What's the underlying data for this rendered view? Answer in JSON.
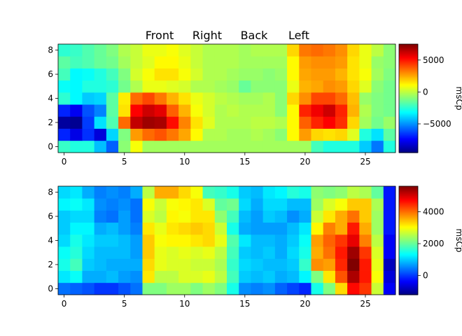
{
  "figure": {
    "top_labels": [
      "Front",
      "Right",
      "Back",
      "Left"
    ]
  },
  "chart_data": [
    {
      "type": "heatmap",
      "title": "",
      "xlabel": "",
      "ylabel": "",
      "x_ticks": [
        0,
        5,
        10,
        15,
        20,
        25
      ],
      "y_ticks": [
        0,
        2,
        4,
        6,
        8
      ],
      "x_range": [
        -0.5,
        27.5
      ],
      "y_range": [
        -0.5,
        8.5
      ],
      "colorbar": {
        "label": "msCp",
        "min": -9500,
        "max": 7500,
        "ticks": [
          5000,
          0,
          -5000
        ]
      },
      "colormap": "jet",
      "rows": [
        [
          -2200,
          -2600,
          -2600,
          -4200,
          -5800,
          -800,
          1000,
          -400,
          -400,
          -400,
          -400,
          -400,
          -400,
          -400,
          -400,
          -400,
          -400,
          -400,
          -400,
          -400,
          -400,
          -2000,
          -2600,
          -2600,
          -2600,
          -4000,
          -5400,
          -2600
        ],
        [
          -6800,
          -7800,
          -6600,
          -8000,
          -3800,
          -1000,
          2800,
          3600,
          4000,
          3400,
          2600,
          1200,
          -200,
          -200,
          -400,
          -400,
          -200,
          -400,
          -800,
          1200,
          2800,
          1800,
          1600,
          1800,
          600,
          -2600,
          -3600,
          -1600
        ],
        [
          -9000,
          -9200,
          -6400,
          -3600,
          -1800,
          3600,
          6400,
          7000,
          6800,
          5200,
          3200,
          1600,
          600,
          -200,
          -200,
          -200,
          0,
          0,
          -200,
          1200,
          3800,
          4800,
          5400,
          4600,
          1800,
          -400,
          -1200,
          -600
        ],
        [
          -6800,
          -7600,
          -6000,
          -5200,
          -1600,
          1600,
          5400,
          6200,
          5800,
          3800,
          2400,
          1000,
          400,
          -200,
          0,
          -200,
          -200,
          -200,
          -800,
          1200,
          4800,
          5600,
          6200,
          4800,
          2400,
          -200,
          -1000,
          -1200
        ],
        [
          -2400,
          -3200,
          -4000,
          -3800,
          -1600,
          1400,
          3600,
          4200,
          3400,
          2400,
          1600,
          800,
          400,
          0,
          -200,
          -400,
          -400,
          -200,
          -800,
          1800,
          3000,
          4200,
          4200,
          3600,
          2200,
          -600,
          -1000,
          -1200
        ],
        [
          -3000,
          -3200,
          -2600,
          -2600,
          -2400,
          -1200,
          -200,
          800,
          800,
          600,
          400,
          -200,
          -200,
          -400,
          -600,
          -1400,
          -800,
          -800,
          -800,
          800,
          2400,
          2600,
          3000,
          2800,
          1800,
          600,
          -800,
          -1200
        ],
        [
          -2000,
          -3200,
          -3000,
          -2600,
          -2000,
          -1000,
          400,
          1000,
          1600,
          1600,
          1000,
          400,
          -200,
          -200,
          -400,
          -600,
          -600,
          -800,
          -600,
          1200,
          2600,
          2800,
          2800,
          2400,
          1600,
          1000,
          -400,
          -1000
        ],
        [
          -1600,
          -2000,
          -1800,
          -1400,
          -1200,
          -400,
          200,
          600,
          1200,
          1200,
          800,
          200,
          -200,
          -200,
          -200,
          -400,
          -400,
          -400,
          -400,
          1200,
          2800,
          3000,
          3000,
          2800,
          1600,
          800,
          -600,
          -800
        ],
        [
          -2400,
          -2200,
          -1800,
          -1400,
          -1000,
          -200,
          200,
          800,
          800,
          1000,
          600,
          200,
          -200,
          -200,
          -200,
          -400,
          -200,
          -200,
          -200,
          1800,
          3400,
          3600,
          3400,
          3000,
          1800,
          800,
          0,
          -800
        ]
      ]
    },
    {
      "type": "heatmap",
      "title": "",
      "xlabel": "",
      "ylabel": "",
      "x_ticks": [
        0,
        5,
        10,
        15,
        20,
        25
      ],
      "y_ticks": [
        0,
        2,
        4,
        6,
        8
      ],
      "x_range": [
        -0.5,
        27.5
      ],
      "y_range": [
        -0.5,
        8.5
      ],
      "colorbar": {
        "label": "msCp",
        "min": -1200,
        "max": 5600,
        "ticks": [
          4000,
          2000,
          0
        ]
      },
      "colormap": "jet",
      "rows": [
        [
          400,
          300,
          200,
          0,
          0,
          200,
          400,
          2200,
          2200,
          2400,
          2400,
          2200,
          2400,
          2200,
          1500,
          600,
          500,
          600,
          300,
          100,
          -100,
          1500,
          2200,
          3300,
          4700,
          4400,
          2700,
          -400
        ],
        [
          1200,
          1400,
          800,
          800,
          900,
          700,
          600,
          3200,
          2600,
          2600,
          2800,
          2800,
          2900,
          2600,
          1800,
          1000,
          900,
          1000,
          800,
          900,
          1300,
          2200,
          3200,
          4200,
          5300,
          4600,
          3000,
          -600
        ],
        [
          1500,
          1800,
          1000,
          900,
          800,
          800,
          800,
          3300,
          2900,
          2800,
          2800,
          2700,
          2700,
          2500,
          1700,
          1100,
          1000,
          900,
          900,
          1000,
          1700,
          3800,
          3700,
          4500,
          5600,
          4600,
          2900,
          -800
        ],
        [
          1400,
          1600,
          1100,
          900,
          900,
          900,
          700,
          3400,
          2900,
          2800,
          2900,
          2800,
          2900,
          2600,
          1800,
          1000,
          900,
          1000,
          800,
          1100,
          1500,
          3600,
          4000,
          4600,
          5400,
          4400,
          2800,
          -400
        ],
        [
          1100,
          1500,
          1200,
          1000,
          1000,
          900,
          700,
          3400,
          3000,
          3100,
          3100,
          3200,
          3300,
          2900,
          1900,
          1200,
          900,
          900,
          800,
          1000,
          1400,
          3700,
          4100,
          4400,
          4900,
          3900,
          2600,
          -400
        ],
        [
          1000,
          1300,
          1300,
          800,
          900,
          700,
          500,
          3200,
          2900,
          3200,
          3300,
          3400,
          3300,
          2700,
          1500,
          800,
          700,
          700,
          700,
          900,
          1200,
          3100,
          3900,
          3600,
          4600,
          3600,
          2400,
          -200
        ],
        [
          1000,
          1100,
          1100,
          500,
          400,
          700,
          400,
          2800,
          2600,
          3100,
          3000,
          3200,
          3200,
          2300,
          1800,
          900,
          700,
          1000,
          900,
          600,
          800,
          2700,
          3200,
          3600,
          4000,
          3400,
          2400,
          -200
        ],
        [
          1300,
          1400,
          1200,
          600,
          500,
          600,
          400,
          3000,
          2700,
          3000,
          3100,
          3200,
          2800,
          2000,
          2100,
          1100,
          800,
          1100,
          1100,
          900,
          900,
          2400,
          2800,
          3000,
          3400,
          3400,
          2500,
          -200
        ],
        [
          1100,
          1200,
          800,
          500,
          600,
          500,
          800,
          2600,
          3600,
          3600,
          3300,
          3000,
          1800,
          1700,
          1500,
          1000,
          900,
          1200,
          1300,
          1600,
          1500,
          2300,
          2200,
          2300,
          2600,
          2500,
          2000,
          -200
        ]
      ]
    }
  ]
}
